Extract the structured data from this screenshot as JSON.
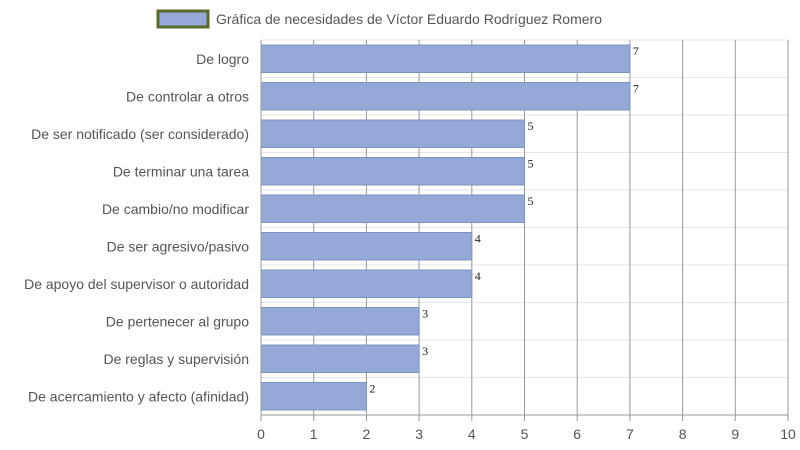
{
  "chart_data": {
    "type": "bar",
    "orientation": "horizontal",
    "categories": [
      "De logro",
      "De controlar a otros",
      "De ser notificado (ser considerado)",
      "De terminar una tarea",
      "De cambio/no modificar",
      "De ser agresivo/pasivo",
      "De apoyo del supervisor o autoridad",
      "De pertenecer al grupo",
      "De reglas y supervisión",
      "De acercamiento y afecto (afinidad)"
    ],
    "series": [
      {
        "name": "Gráfica de necesidades de Víctor Eduardo Rodríguez Romero",
        "values": [
          7,
          7,
          5,
          5,
          5,
          4,
          4,
          3,
          3,
          2
        ]
      }
    ],
    "xlim": [
      0,
      10
    ],
    "x_ticks": [
      "0",
      "1",
      "2",
      "3",
      "4",
      "5",
      "6",
      "7",
      "8",
      "9",
      "10"
    ],
    "grid": true,
    "legend_position": "top-center",
    "data_labels": true,
    "colors": {
      "bar_fill": "#95a9d6",
      "bar_stroke": "#7f93c2",
      "legend_border": "#5a6b2a",
      "grid_vertical": "#999999",
      "grid_horizontal": "#e6e6e6"
    }
  }
}
